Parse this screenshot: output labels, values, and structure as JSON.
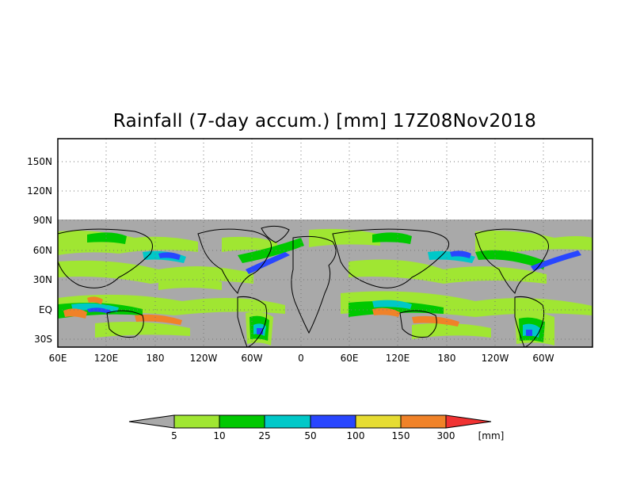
{
  "title": "Rainfall (7-day accum.) [mm] 17Z08Nov2018",
  "map": {
    "lat_labels": [
      "150N",
      "120N",
      "90N",
      "60N",
      "30N",
      "EQ",
      "30S"
    ],
    "lon_labels": [
      "60E",
      "120E",
      "180",
      "120W",
      "60W",
      "0",
      "60E",
      "120E",
      "180",
      "120W",
      "60W"
    ],
    "no_data_color": "#a9a9a9",
    "plot_background": "#ffffff",
    "grid": "dotted"
  },
  "colorbar": {
    "labels": [
      "5",
      "10",
      "25",
      "50",
      "100",
      "150",
      "300"
    ],
    "unit": "[mm]",
    "colors": [
      "#a9a9a9",
      "#a0e632",
      "#00c800",
      "#00c8c8",
      "#2846ff",
      "#e6dc32",
      "#f08228",
      "#f03232"
    ]
  }
}
